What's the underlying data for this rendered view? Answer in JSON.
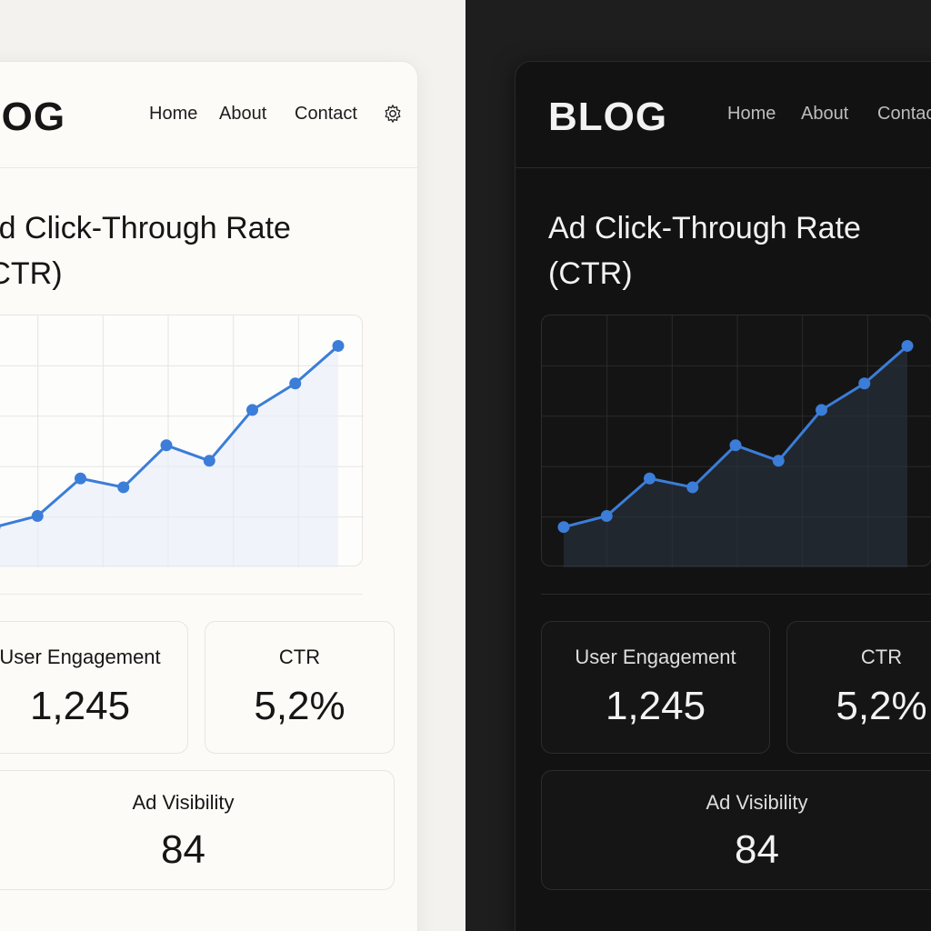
{
  "theme_light": {
    "background": "#f3f2ef",
    "card": "#fcfbf8",
    "grid": "#e6e5e1",
    "fill": "#e7eef8"
  },
  "theme_dark": {
    "background": "#1e1e1e",
    "card": "#121212",
    "grid": "#2a2a2a",
    "fill": "#2a3340"
  },
  "accent": "#3b7dd8",
  "header": {
    "logo": "BLOG",
    "nav": [
      "Home",
      "About",
      "Contact"
    ],
    "settings_icon": "gear-icon"
  },
  "page": {
    "title": "Ad Click-Through Rate (CTR)"
  },
  "chart_data": {
    "type": "line",
    "title": "Ad Click-Through Rate (CTR)",
    "xlabel": "",
    "ylabel": "",
    "x": [
      1,
      2,
      3,
      4,
      5,
      6,
      7,
      8,
      9
    ],
    "values": [
      1.0,
      1.5,
      3.2,
      2.8,
      4.7,
      4.0,
      6.3,
      7.5,
      9.2
    ],
    "ylim": [
      0,
      10
    ],
    "grid": true,
    "legend": "none"
  },
  "stats": {
    "engagement": {
      "label": "User Engagement",
      "value": "1,245"
    },
    "ctr": {
      "label": "CTR",
      "value": "5,2%"
    },
    "visibility": {
      "label": "Ad Visibility",
      "value": "84"
    }
  }
}
